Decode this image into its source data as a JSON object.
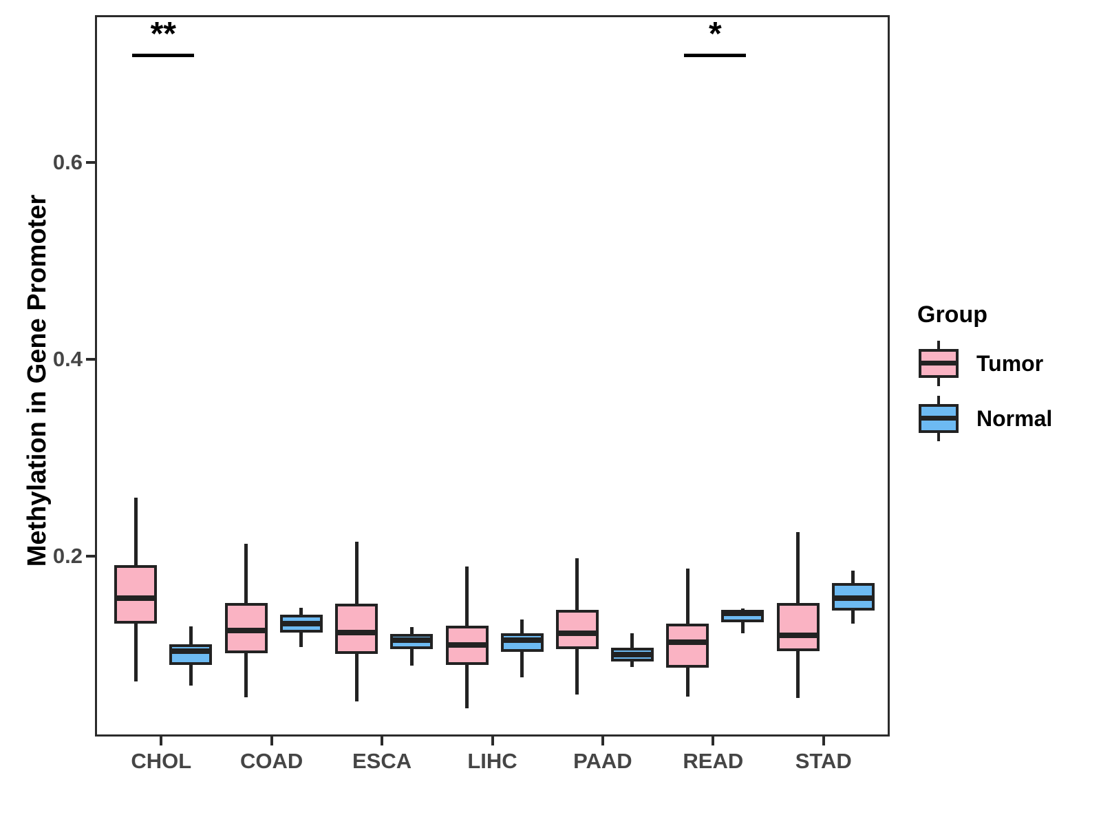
{
  "figure": {
    "y_axis": {
      "title": "Methylation in Gene Promoter",
      "ticks": [
        {
          "value": 0.2,
          "label": "0.2"
        },
        {
          "value": 0.4,
          "label": "0.4"
        },
        {
          "value": 0.6,
          "label": "0.6"
        }
      ],
      "range": [
        0.017,
        0.75
      ]
    },
    "x_axis": {
      "title": "",
      "categories": [
        "CHOL",
        "COAD",
        "ESCA",
        "LIHC",
        "PAAD",
        "READ",
        "STAD"
      ]
    },
    "legend": {
      "title": "Group",
      "items": [
        {
          "label": "Tumor",
          "color": "#FAB3C3"
        },
        {
          "label": "Normal",
          "color": "#6DBAF2"
        }
      ]
    },
    "colors": {
      "tumor_fill": "#FAB3C3",
      "normal_fill": "#6DBAF2",
      "line": "#222222",
      "axis_text": "#454545"
    }
  },
  "chart_data": {
    "type": "boxplot",
    "title": "",
    "xlabel": "",
    "ylabel": "Methylation in Gene Promoter",
    "ylim": [
      0.017,
      0.75
    ],
    "yticks": [
      0.2,
      0.4,
      0.6
    ],
    "grid": false,
    "legend_position": "right",
    "categories": [
      "CHOL",
      "COAD",
      "ESCA",
      "LIHC",
      "PAAD",
      "READ",
      "STAD"
    ],
    "series": [
      {
        "name": "Tumor",
        "color": "#FAB3C3",
        "boxes": [
          {
            "category": "CHOL",
            "whisker_low": 0.075,
            "q1": 0.134,
            "median": 0.16,
            "q3": 0.193,
            "whisker_high": 0.262
          },
          {
            "category": "COAD",
            "whisker_low": 0.059,
            "q1": 0.104,
            "median": 0.127,
            "q3": 0.155,
            "whisker_high": 0.215
          },
          {
            "category": "ESCA",
            "whisker_low": 0.055,
            "q1": 0.103,
            "median": 0.125,
            "q3": 0.154,
            "whisker_high": 0.217
          },
          {
            "category": "LIHC",
            "whisker_low": 0.048,
            "q1": 0.092,
            "median": 0.112,
            "q3": 0.132,
            "whisker_high": 0.192
          },
          {
            "category": "PAAD",
            "whisker_low": 0.062,
            "q1": 0.108,
            "median": 0.124,
            "q3": 0.148,
            "whisker_high": 0.2
          },
          {
            "category": "READ",
            "whisker_low": 0.06,
            "q1": 0.089,
            "median": 0.115,
            "q3": 0.134,
            "whisker_high": 0.19
          },
          {
            "category": "STAD",
            "whisker_low": 0.058,
            "q1": 0.106,
            "median": 0.122,
            "q3": 0.155,
            "whisker_high": 0.227
          }
        ]
      },
      {
        "name": "Normal",
        "color": "#6DBAF2",
        "boxes": [
          {
            "category": "CHOL",
            "whisker_low": 0.071,
            "q1": 0.092,
            "median": 0.106,
            "q3": 0.113,
            "whisker_high": 0.131
          },
          {
            "category": "COAD",
            "whisker_low": 0.11,
            "q1": 0.125,
            "median": 0.134,
            "q3": 0.143,
            "whisker_high": 0.15
          },
          {
            "category": "ESCA",
            "whisker_low": 0.091,
            "q1": 0.108,
            "median": 0.117,
            "q3": 0.123,
            "whisker_high": 0.13
          },
          {
            "category": "LIHC",
            "whisker_low": 0.079,
            "q1": 0.105,
            "median": 0.117,
            "q3": 0.124,
            "whisker_high": 0.138
          },
          {
            "category": "PAAD",
            "whisker_low": 0.09,
            "q1": 0.095,
            "median": 0.102,
            "q3": 0.109,
            "whisker_high": 0.124
          },
          {
            "category": "READ",
            "whisker_low": 0.124,
            "q1": 0.135,
            "median": 0.144,
            "q3": 0.148,
            "whisker_high": 0.149
          },
          {
            "category": "STAD",
            "whisker_low": 0.134,
            "q1": 0.147,
            "median": 0.16,
            "q3": 0.175,
            "whisker_high": 0.188
          }
        ]
      }
    ],
    "annotations": [
      {
        "category": "CHOL",
        "label": "**",
        "y": 0.713
      },
      {
        "category": "READ",
        "label": "*",
        "y": 0.713
      }
    ]
  }
}
